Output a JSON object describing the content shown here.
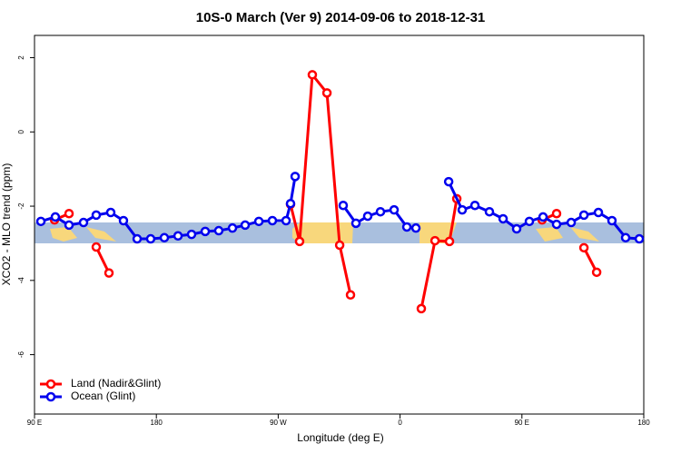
{
  "chart_data": {
    "type": "line",
    "title": "10S-0 March (Ver 9)   2014-09-06 to 2018-12-31",
    "x_label": "Longitude (deg E)",
    "y_label": "XCO2 - MLO trend (ppm)",
    "xlim": [
      90,
      540
    ],
    "ylim": [
      -7.6,
      2.6
    ],
    "xticks": [
      {
        "value": 90,
        "label": "90 E"
      },
      180,
      {
        "value": 270,
        "label": "90 W"
      },
      {
        "value": 360,
        "label": "0"
      },
      {
        "value": 450,
        "label": "90 E"
      },
      {
        "value": 540,
        "label": "180"
      }
    ],
    "yticks": [
      2,
      0,
      -2,
      -4,
      -6
    ],
    "legend": "bottom-left",
    "series": [
      {
        "name": "Land (Nadir&Glint)",
        "color": "#ff0000",
        "x": [
          104.8,
          115.5,
          null,
          135.6,
          145.0,
          null,
          279.1,
          285.8,
          295.2,
          306.0,
          315.4,
          323.4,
          null,
          375.7,
          385.8,
          396.5,
          401.9,
          null,
          464.9,
          475.6,
          null,
          495.8,
          505.2
        ],
        "values": [
          -2.37,
          -2.2,
          null,
          -3.1,
          -3.8,
          null,
          -1.95,
          -2.95,
          1.54,
          1.05,
          -3.05,
          -4.39,
          null,
          -4.76,
          -2.93,
          -2.95,
          -1.8,
          null,
          -2.37,
          -2.2,
          null,
          -3.12,
          -3.78
        ]
      },
      {
        "name": "Ocean (Glint)",
        "color": "#0000ee",
        "x": [
          94.7,
          105.4,
          115.5,
          126.2,
          135.6,
          146.3,
          155.7,
          165.8,
          175.8,
          185.9,
          196.0,
          206.0,
          216.1,
          226.1,
          236.2,
          245.6,
          255.7,
          265.7,
          275.8,
          279.1,
          282.5,
          null,
          318.0,
          327.4,
          336.1,
          345.5,
          355.6,
          365.0,
          371.7,
          null,
          395.9,
          405.9,
          415.3,
          426.0,
          436.1,
          446.1,
          455.5,
          465.6,
          475.6,
          486.4,
          495.8,
          506.5,
          516.5,
          526.6,
          536.7
        ],
        "values": [
          -2.41,
          -2.29,
          -2.51,
          -2.44,
          -2.24,
          -2.17,
          -2.39,
          -2.88,
          -2.88,
          -2.85,
          -2.8,
          -2.76,
          -2.68,
          -2.66,
          -2.59,
          -2.51,
          -2.41,
          -2.39,
          -2.39,
          -1.93,
          -1.2,
          null,
          -1.98,
          -2.46,
          -2.27,
          -2.15,
          -2.1,
          -2.56,
          -2.59,
          null,
          -1.34,
          -2.1,
          -1.98,
          -2.15,
          -2.34,
          -2.61,
          -2.41,
          -2.29,
          -2.49,
          -2.44,
          -2.24,
          -2.17,
          -2.39,
          -2.85,
          -2.88
        ]
      }
    ]
  }
}
